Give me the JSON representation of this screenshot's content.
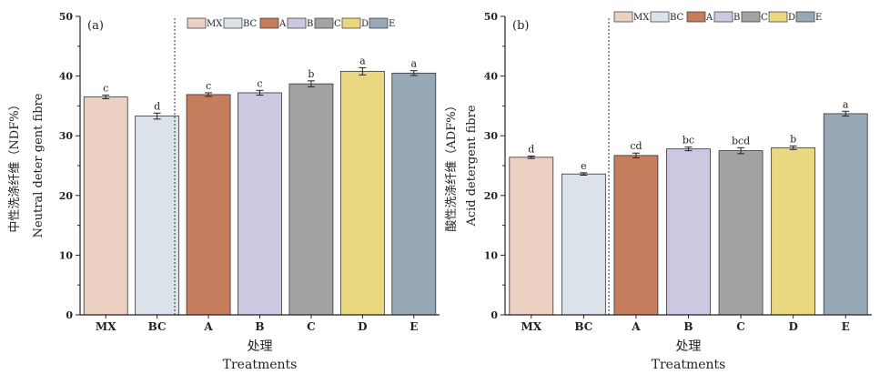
{
  "chart_data": [
    {
      "type": "bar",
      "panel_label": "(a)",
      "categories": [
        "MX",
        "BC",
        "A",
        "B",
        "C",
        "D",
        "E"
      ],
      "values": [
        36.5,
        33.3,
        36.9,
        37.2,
        38.7,
        40.8,
        40.5
      ],
      "errors": [
        0.3,
        0.5,
        0.3,
        0.4,
        0.5,
        0.6,
        0.4
      ],
      "significance": [
        "c",
        "d",
        "c",
        "c",
        "b",
        "a",
        "a"
      ],
      "colors": [
        "#ecd0c2",
        "#dce2e9",
        "#c67d5e",
        "#ccc8e1",
        "#a3a3a3",
        "#ead880",
        "#97a8b7"
      ],
      "ylabel_cn": "中性洗涤纤维（NDF%）",
      "ylabel_en": "Neutral deter gent fibre",
      "xlabel_cn": "处理",
      "xlabel_en": "Treatments",
      "ylim": [
        0,
        50
      ],
      "yticks": [
        "0",
        "10",
        "20",
        "30",
        "40",
        "50"
      ],
      "legend": [
        "MX",
        "BC",
        "A",
        "B",
        "C",
        "D",
        "E"
      ],
      "legend_position": "top-right"
    },
    {
      "type": "bar",
      "panel_label": "(b)",
      "categories": [
        "MX",
        "BC",
        "A",
        "B",
        "C",
        "D",
        "E"
      ],
      "values": [
        26.4,
        23.6,
        26.7,
        27.8,
        27.5,
        28.0,
        33.7
      ],
      "errors": [
        0.2,
        0.2,
        0.4,
        0.3,
        0.5,
        0.3,
        0.4
      ],
      "significance": [
        "d",
        "e",
        "cd",
        "bc",
        "bcd",
        "b",
        "a"
      ],
      "colors": [
        "#ecd0c2",
        "#dce2e9",
        "#c67d5e",
        "#ccc8e1",
        "#a3a3a3",
        "#ead880",
        "#97a8b7"
      ],
      "ylabel_cn": "酸性洗涤纤维（ADF%）",
      "ylabel_en": "Acid detergent fibre",
      "xlabel_cn": "处理",
      "xlabel_en": "Treatments",
      "ylim": [
        0,
        50
      ],
      "yticks": [
        "0",
        "10",
        "20",
        "30",
        "40",
        "50"
      ],
      "legend": [
        "MX",
        "BC",
        "A",
        "B",
        "C",
        "D",
        "E"
      ],
      "legend_position": "top-right"
    }
  ]
}
